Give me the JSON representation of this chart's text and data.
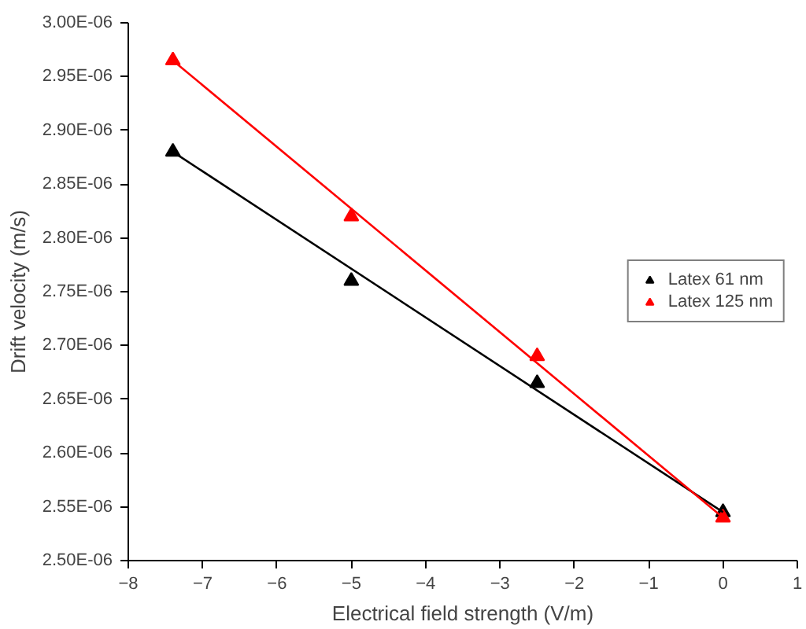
{
  "chart_data": {
    "type": "scatter",
    "xlabel": "Electrical field strength (V/m)",
    "ylabel": "Drift velocity (m/s)",
    "xlim": [
      -8,
      1
    ],
    "xticks": [
      -8,
      -7,
      -6,
      -5,
      -4,
      -3,
      -2,
      -1,
      0,
      1
    ],
    "ylim": [
      2.5e-06,
      3e-06
    ],
    "yticks": [
      {
        "value": 2.5e-06,
        "label": "2.50E-06"
      },
      {
        "value": 2.55e-06,
        "label": "2.55E-06"
      },
      {
        "value": 2.6e-06,
        "label": "2.60E-06"
      },
      {
        "value": 2.65e-06,
        "label": "2.65E-06"
      },
      {
        "value": 2.7e-06,
        "label": "2.70E-06"
      },
      {
        "value": 2.75e-06,
        "label": "2.75E-06"
      },
      {
        "value": 2.8e-06,
        "label": "2.80E-06"
      },
      {
        "value": 2.85e-06,
        "label": "2.85E-06"
      },
      {
        "value": 2.9e-06,
        "label": "2.90E-06"
      },
      {
        "value": 2.95e-06,
        "label": "2.95E-06"
      },
      {
        "value": 3e-06,
        "label": "3.00E-06"
      }
    ],
    "grid": false,
    "legend": "right",
    "series": [
      {
        "name": "Latex 61 nm",
        "color": "#000000",
        "marker": "triangle",
        "x": [
          -7.4,
          -5,
          -2.5,
          0
        ],
        "values": [
          2.88e-06,
          2.76e-06,
          2.665e-06,
          2.545e-06
        ]
      },
      {
        "name": "Latex 125 nm",
        "color": "#ff0000",
        "marker": "triangle",
        "x": [
          -7.4,
          -5,
          -2.5,
          0
        ],
        "values": [
          2.965e-06,
          2.82e-06,
          2.69e-06,
          2.54e-06
        ]
      },
      {
        "type": "line",
        "color": "#000000",
        "x": [
          -7.4,
          0
        ],
        "values": [
          2.88e-06,
          2.545e-06
        ]
      },
      {
        "type": "line",
        "color": "#ff0000",
        "x": [
          -7.4,
          0
        ],
        "values": [
          2.965e-06,
          2.54e-06
        ]
      }
    ]
  }
}
